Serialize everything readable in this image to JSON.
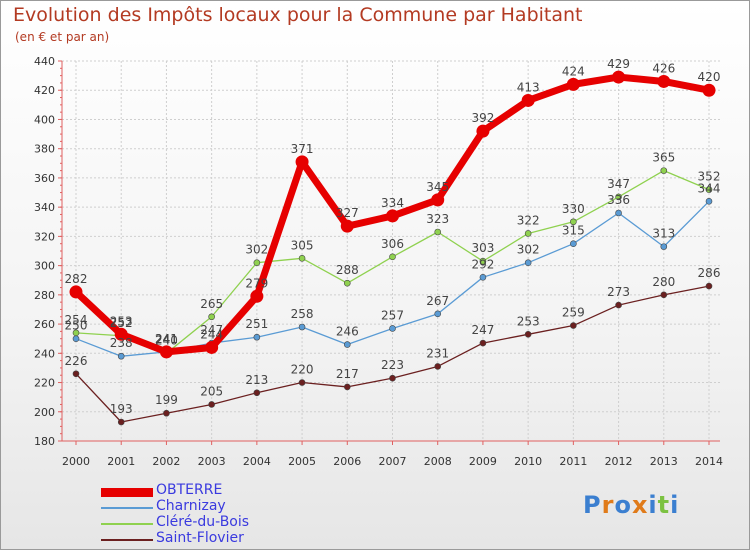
{
  "header": {
    "title": "Evolution des Impôts locaux pour la Commune par Habitant",
    "subtitle": "(en € et par an)"
  },
  "logo": {
    "text": "Proxiti"
  },
  "colors": {
    "title": "#b33a22",
    "OBTERRE": "#e60000",
    "Charnizay": "#5a9bd4",
    "Cléré-du-Bois": "#8fd14f",
    "Saint-Flovier": "#6b2020"
  },
  "chart_data": {
    "type": "line",
    "title": "Evolution des Impôts locaux pour la Commune par Habitant",
    "subtitle": "(en € et par an)",
    "x": [
      2000,
      2001,
      2002,
      2003,
      2004,
      2005,
      2006,
      2007,
      2008,
      2009,
      2010,
      2011,
      2012,
      2013,
      2014
    ],
    "ylim": [
      180,
      440
    ],
    "yticks": [
      180,
      200,
      220,
      240,
      260,
      280,
      300,
      320,
      340,
      360,
      380,
      400,
      420,
      440
    ],
    "grid": true,
    "legend_position": "bottom-left",
    "series": [
      {
        "name": "OBTERRE",
        "color": "#e60000",
        "values": [
          282,
          253,
          241,
          244,
          279,
          371,
          327,
          334,
          345,
          392,
          413,
          424,
          429,
          426,
          420
        ]
      },
      {
        "name": "Charnizay",
        "color": "#5a9bd4",
        "values": [
          250,
          238,
          241,
          247,
          251,
          258,
          246,
          257,
          267,
          292,
          302,
          315,
          336,
          313,
          344
        ]
      },
      {
        "name": "Cléré-du-Bois",
        "color": "#8fd14f",
        "values": [
          254,
          252,
          240,
          265,
          302,
          305,
          288,
          306,
          323,
          303,
          322,
          330,
          347,
          365,
          352
        ]
      },
      {
        "name": "Saint-Flovier",
        "color": "#6b2020",
        "values": [
          226,
          193,
          199,
          205,
          213,
          220,
          217,
          223,
          231,
          247,
          253,
          259,
          273,
          280,
          286
        ]
      }
    ]
  }
}
